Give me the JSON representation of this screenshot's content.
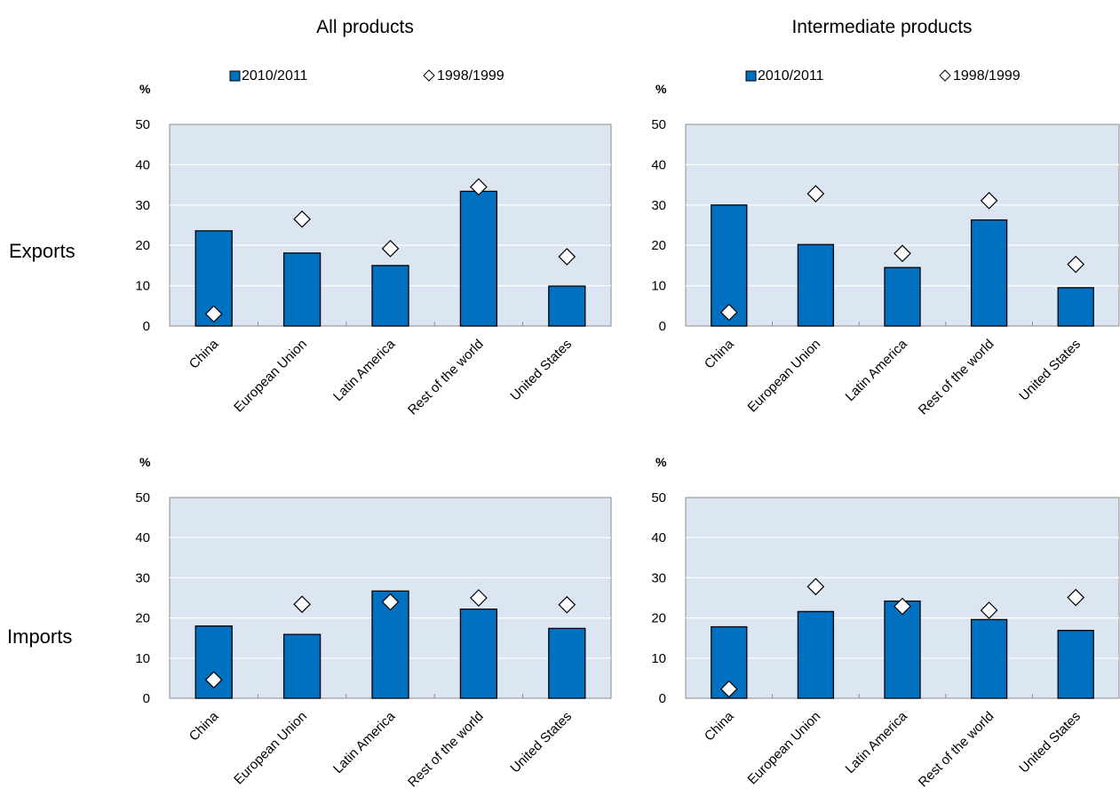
{
  "column_titles": [
    "All products",
    "Intermediate products"
  ],
  "row_labels": [
    "Exports",
    "Imports"
  ],
  "chart_data": [
    {
      "type": "bar",
      "title": "",
      "column": "All products",
      "row": "Exports",
      "unit": "%",
      "ylim": [
        0,
        50
      ],
      "yticks": [
        "0",
        "10",
        "20",
        "30",
        "40",
        "50"
      ],
      "categories": [
        "China",
        "European Union",
        "Latin America",
        "Rest of the world",
        "United States"
      ],
      "legend": [
        "2010/2011",
        "1998/1999"
      ],
      "series": [
        {
          "name": "2010/2011",
          "mark": "bar",
          "values": [
            23.6,
            18.1,
            15.0,
            33.4,
            9.9
          ]
        },
        {
          "name": "1998/1999",
          "mark": "diamond",
          "values": [
            3.0,
            26.5,
            19.2,
            34.5,
            17.2
          ]
        }
      ],
      "colors": {
        "bar": "#0070c0",
        "plot_bg": "#dce6f2",
        "grid": "#ffffff"
      },
      "grid": true,
      "legend_position": "top"
    },
    {
      "type": "bar",
      "title": "",
      "column": "Intermediate products",
      "row": "Exports",
      "unit": "%",
      "ylim": [
        0,
        50
      ],
      "yticks": [
        "0",
        "10",
        "20",
        "30",
        "40",
        "50"
      ],
      "categories": [
        "China",
        "European Union",
        "Latin America",
        "Rest of the world",
        "United States"
      ],
      "legend": [
        "2010/2011",
        "1998/1999"
      ],
      "series": [
        {
          "name": "2010/2011",
          "mark": "bar",
          "values": [
            30.0,
            20.2,
            14.5,
            26.3,
            9.5
          ]
        },
        {
          "name": "1998/1999",
          "mark": "diamond",
          "values": [
            3.4,
            32.8,
            18.0,
            31.1,
            15.3
          ]
        }
      ],
      "colors": {
        "bar": "#0070c0",
        "plot_bg": "#dce6f2",
        "grid": "#ffffff"
      },
      "grid": true,
      "legend_position": "top"
    },
    {
      "type": "bar",
      "title": "",
      "column": "All products",
      "row": "Imports",
      "unit": "%",
      "ylim": [
        0,
        50
      ],
      "yticks": [
        "0",
        "10",
        "20",
        "30",
        "40",
        "50"
      ],
      "categories": [
        "China",
        "European Union",
        "Latin America",
        "Rest of the world",
        "United States"
      ],
      "series": [
        {
          "name": "2010/2011",
          "mark": "bar",
          "values": [
            18.0,
            15.9,
            26.7,
            22.2,
            17.4
          ]
        },
        {
          "name": "1998/1999",
          "mark": "diamond",
          "values": [
            4.6,
            23.4,
            24.0,
            25.0,
            23.3
          ]
        }
      ],
      "colors": {
        "bar": "#0070c0",
        "plot_bg": "#dce6f2",
        "grid": "#ffffff"
      },
      "grid": true
    },
    {
      "type": "bar",
      "title": "",
      "column": "Intermediate products",
      "row": "Imports",
      "unit": "%",
      "ylim": [
        0,
        50
      ],
      "yticks": [
        "0",
        "10",
        "20",
        "30",
        "40",
        "50"
      ],
      "categories": [
        "China",
        "European Union",
        "Latin America",
        "Rest of the world",
        "United States"
      ],
      "series": [
        {
          "name": "2010/2011",
          "mark": "bar",
          "values": [
            17.8,
            21.6,
            24.2,
            19.6,
            16.9
          ]
        },
        {
          "name": "1998/1999",
          "mark": "diamond",
          "values": [
            2.3,
            27.8,
            22.9,
            21.9,
            25.1
          ]
        }
      ],
      "colors": {
        "bar": "#0070c0",
        "plot_bg": "#dce6f2",
        "grid": "#ffffff"
      },
      "grid": true
    }
  ]
}
